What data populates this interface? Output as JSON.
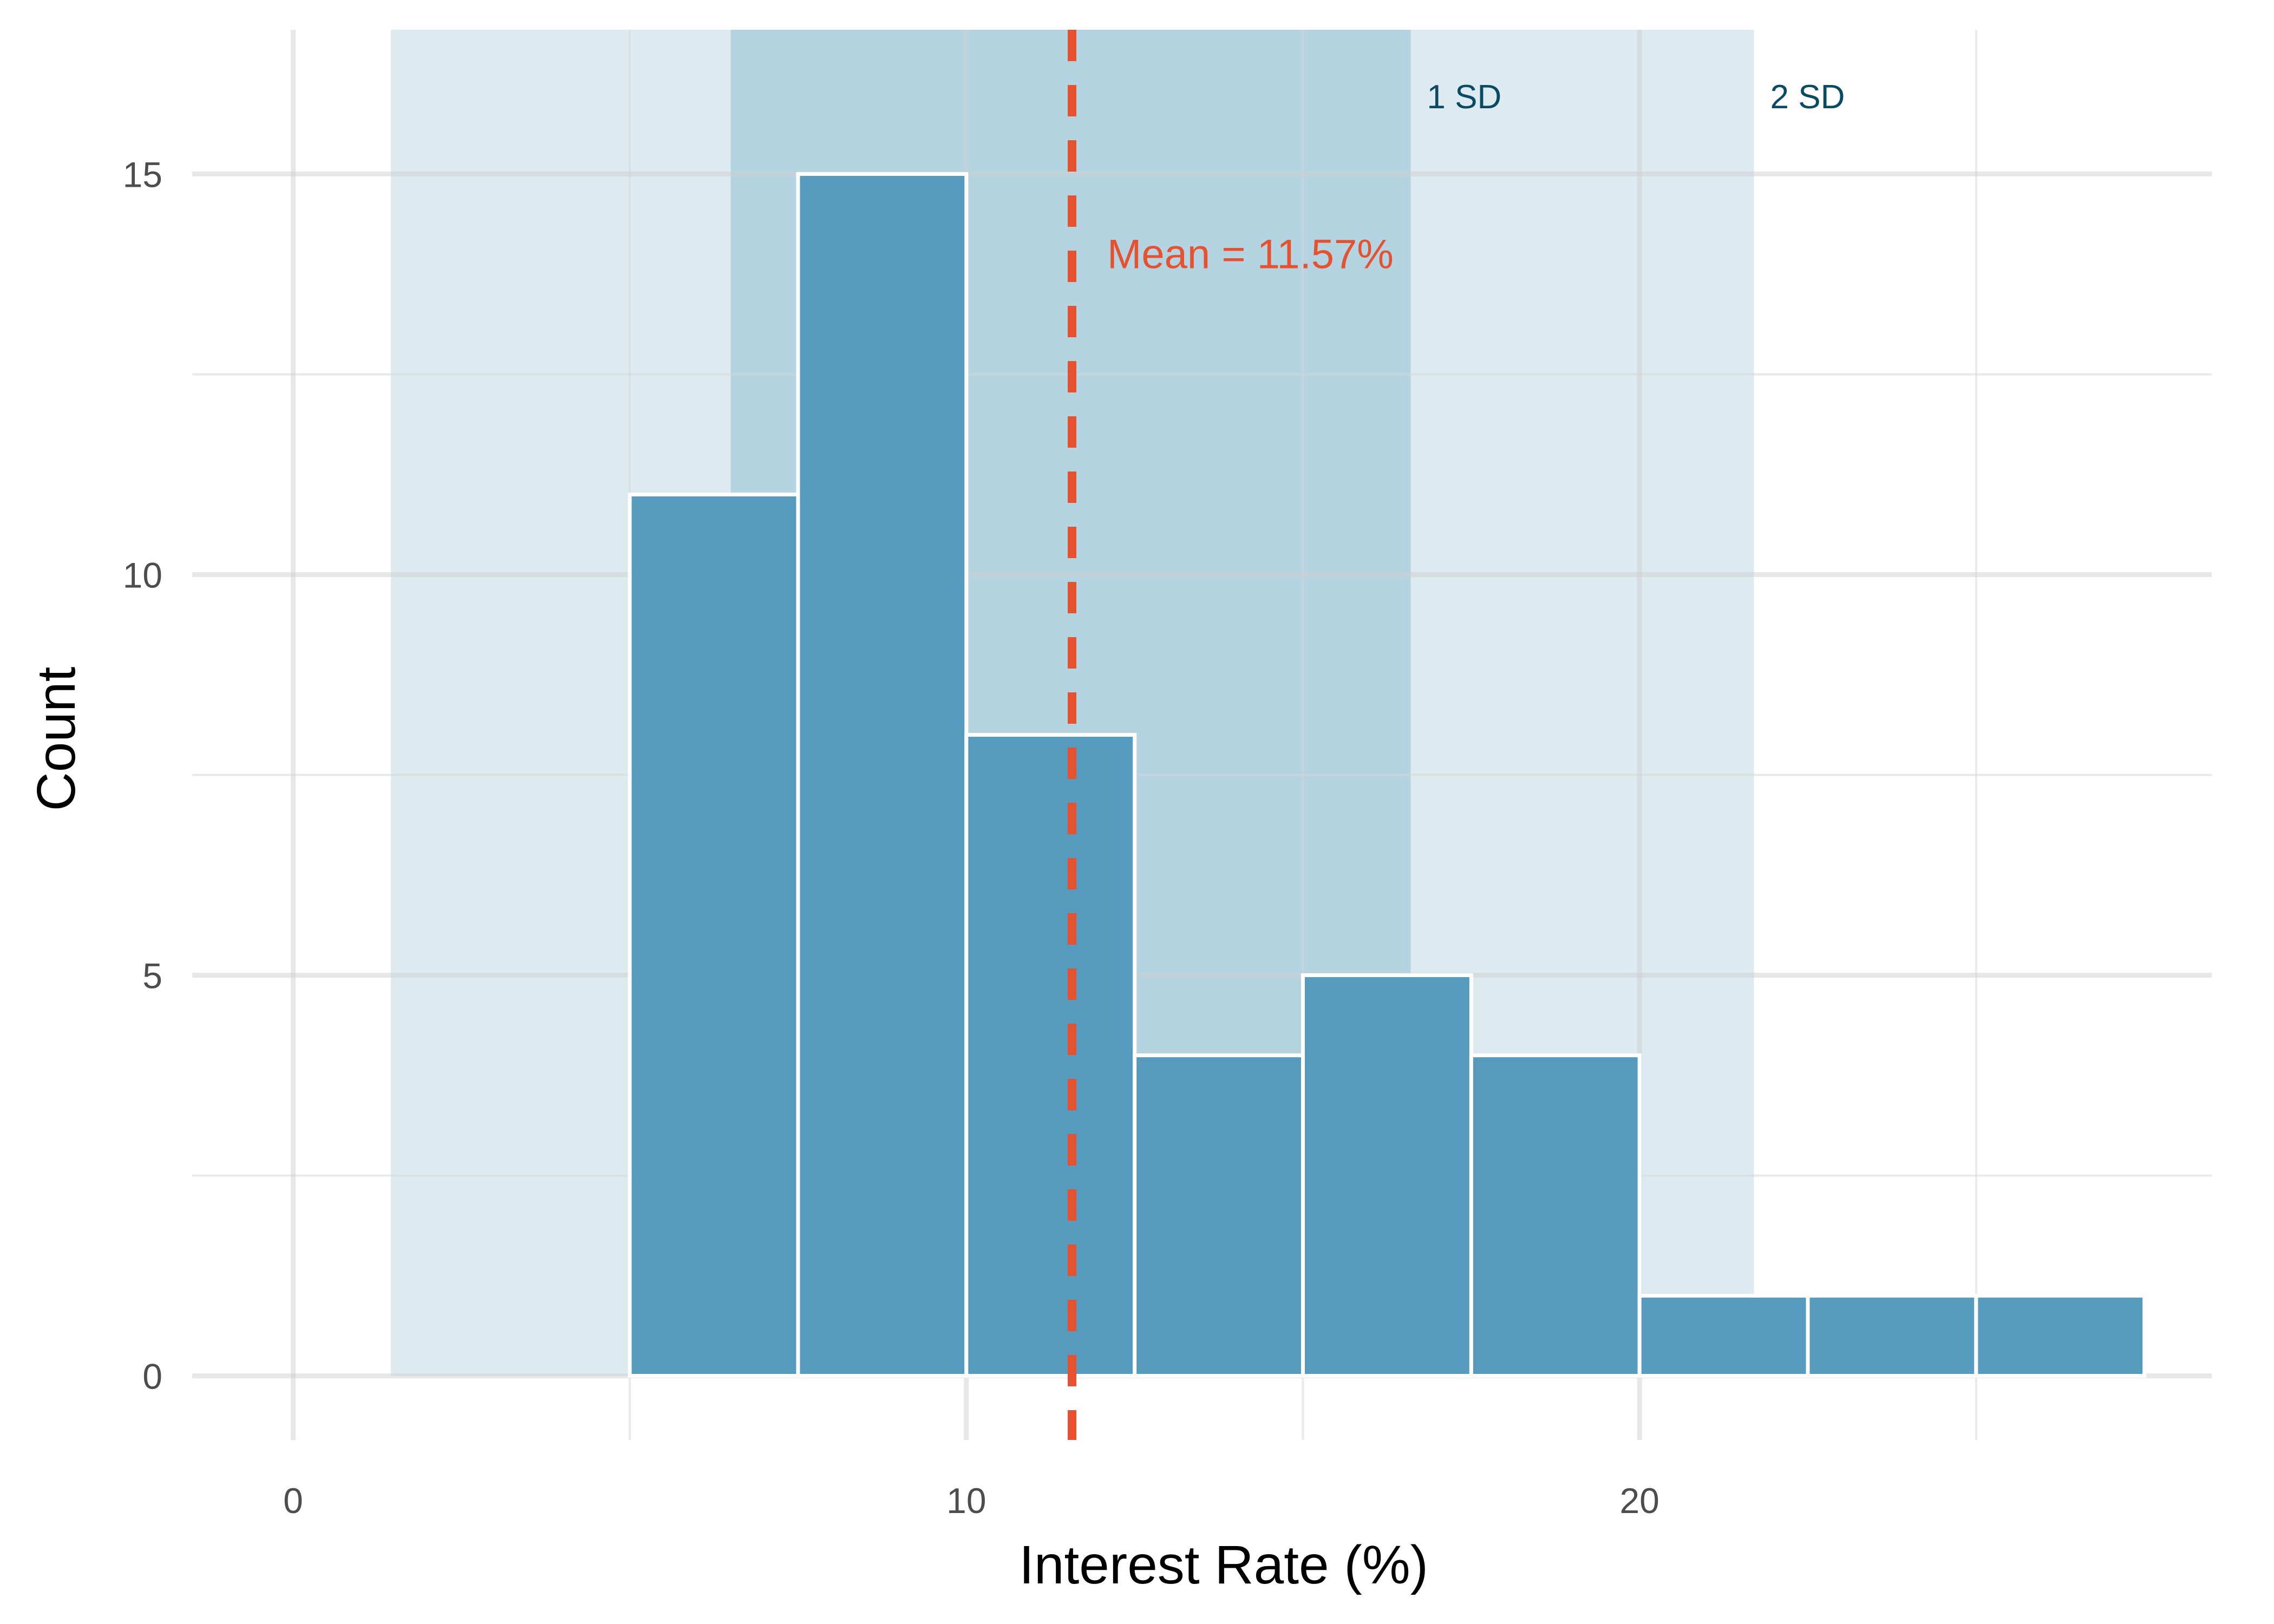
{
  "chart_data": {
    "type": "bar",
    "subtype": "histogram",
    "xlabel": "Interest Rate (%)",
    "ylabel": "Count",
    "xlim": [
      -1.5,
      28.5
    ],
    "ylim": [
      -0.8,
      16.8
    ],
    "x_ticks": [
      0,
      10,
      20
    ],
    "x_minor_ticks": [
      5,
      15,
      25
    ],
    "y_ticks": [
      0,
      5,
      10,
      15
    ],
    "y_minor_ticks": [
      2.5,
      7.5,
      12.5
    ],
    "grid": true,
    "bins": [
      {
        "x0": 5,
        "x1": 7.5,
        "count": 11
      },
      {
        "x0": 7.5,
        "x1": 10,
        "count": 15
      },
      {
        "x0": 10,
        "x1": 12.5,
        "count": 8
      },
      {
        "x0": 12.5,
        "x1": 15,
        "count": 4
      },
      {
        "x0": 15,
        "x1": 17.5,
        "count": 5
      },
      {
        "x0": 17.5,
        "x1": 20,
        "count": 4
      },
      {
        "x0": 20,
        "x1": 22.5,
        "count": 1
      },
      {
        "x0": 22.5,
        "x1": 25,
        "count": 1
      },
      {
        "x0": 25,
        "x1": 27.5,
        "count": 1
      }
    ],
    "mean": 11.57,
    "mean_label": "Mean = 11.57%",
    "sd_bands": [
      {
        "label": "2 SD",
        "from": 1.45,
        "to": 21.7
      },
      {
        "label": "1 SD",
        "from": 6.5,
        "to": 16.6
      }
    ],
    "colors": {
      "bar_fill": "#569bbd",
      "bar_stroke": "#ffffff",
      "band_2sd": "#ddebf1",
      "band_1sd": "#b4d4e2",
      "mean_line": "#e6512f",
      "band_text": "#0b4a63",
      "grid_major": "#ebebeb",
      "grid_minor": "#f3f3f3"
    }
  }
}
